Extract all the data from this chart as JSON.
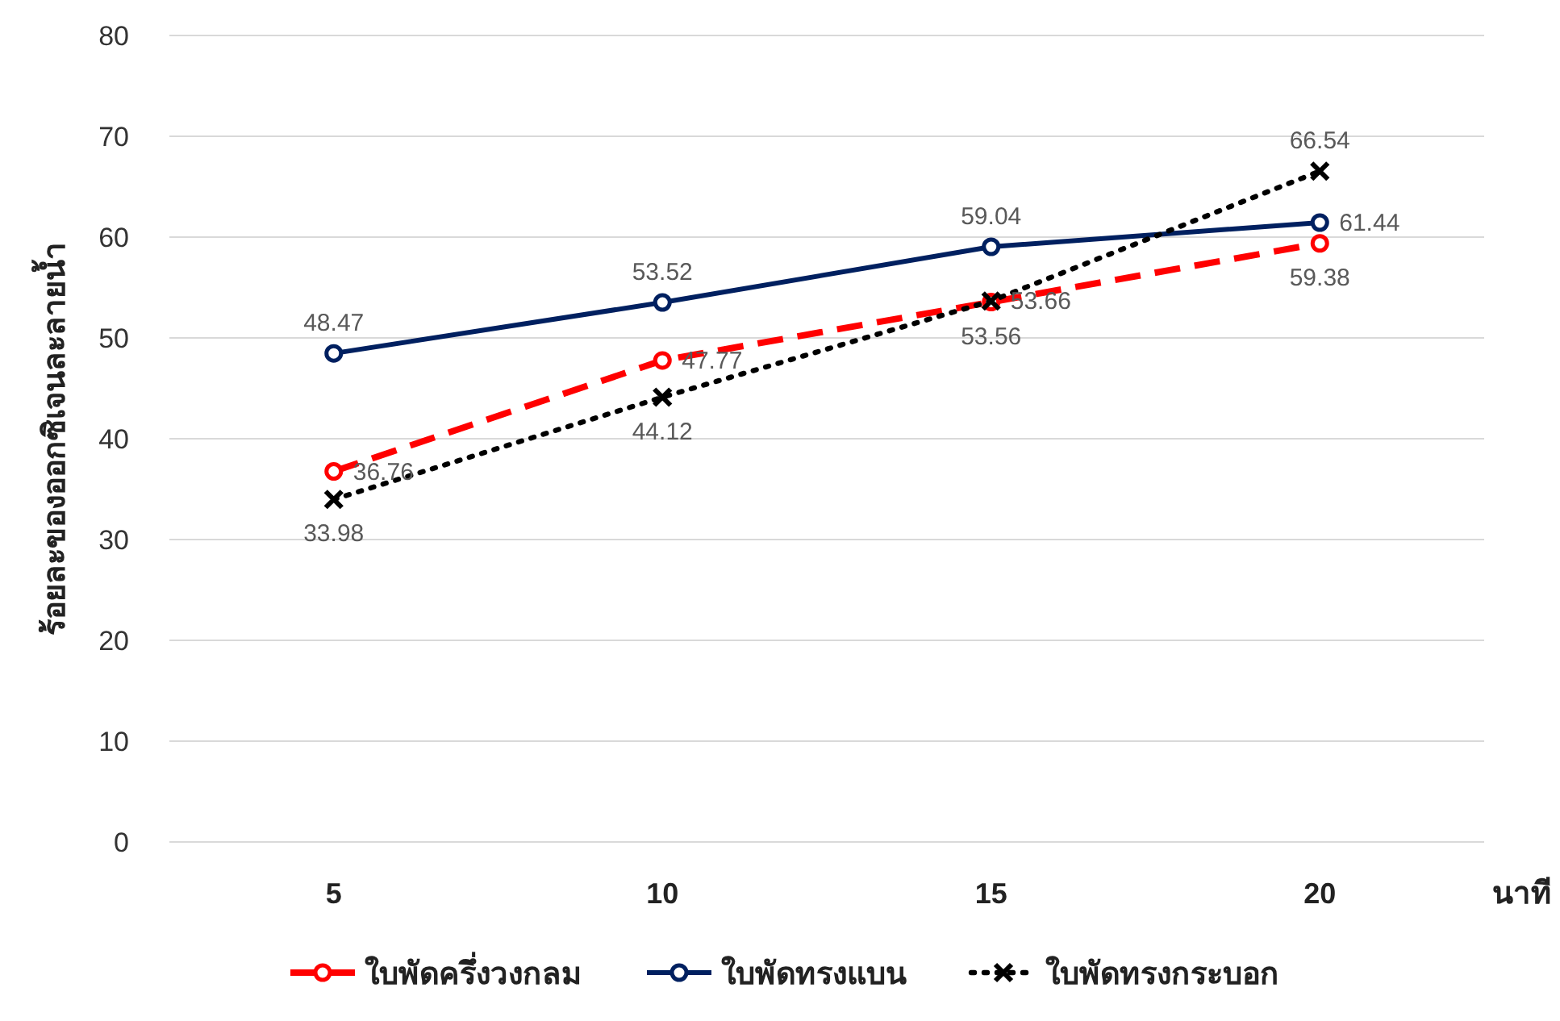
{
  "chart_data": {
    "type": "line",
    "categories": [
      "5",
      "10",
      "15",
      "20"
    ],
    "xlabel": "นาที",
    "ylabel": "ร้อยละของออกซิเจนละลายน้ำ",
    "ylim": [
      0,
      80
    ],
    "yticks": [
      0,
      10,
      20,
      30,
      40,
      50,
      60,
      70,
      80
    ],
    "grid": "y",
    "legend": "bottom",
    "data_labels": true,
    "marker": "circle",
    "series": [
      {
        "name": "ใบพัดครึ่งวงกลม",
        "color": "#ff0000",
        "line_style": "dashed",
        "values": [
          36.76,
          47.77,
          53.56,
          59.38
        ]
      },
      {
        "name": "ใบพัดทรงแบน",
        "color": "#002060",
        "line_style": "solid",
        "values": [
          48.47,
          53.52,
          59.04,
          61.44
        ]
      },
      {
        "name": "ใบพัดทรงกระบอก",
        "color": "#000000",
        "line_style": "dotted",
        "marker": "cross",
        "values": [
          33.98,
          44.12,
          53.66,
          66.54
        ]
      }
    ]
  }
}
